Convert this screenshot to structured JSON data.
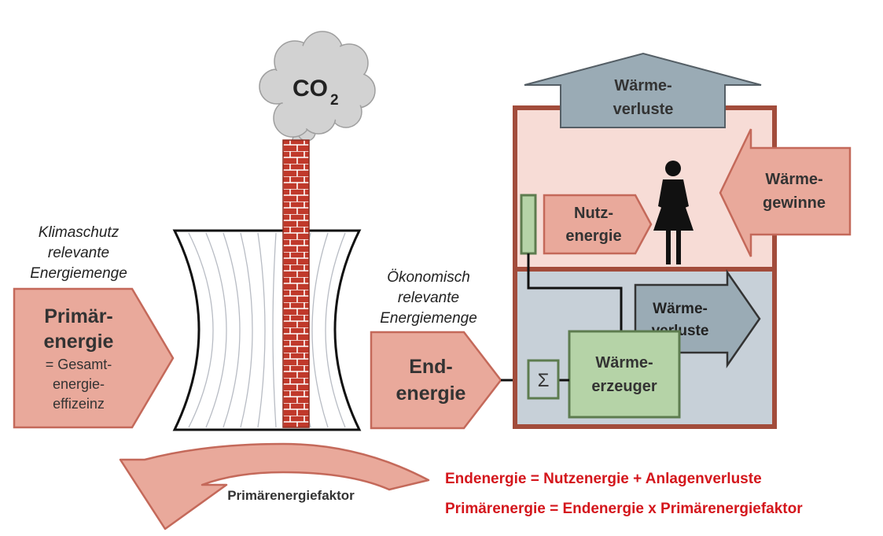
{
  "cloud": {
    "label_main": "CO",
    "label_sub": "2"
  },
  "left": {
    "caption": [
      "Klimaschutz",
      "relevante",
      "Energiemenge"
    ],
    "arrow_title": [
      "Primär-",
      "energie"
    ],
    "arrow_sub": [
      "= Gesamt-",
      "energie-",
      "effizeinz"
    ]
  },
  "curved_arrow": {
    "label": "Primärenergiefaktor"
  },
  "middle": {
    "caption": [
      "Ökonomisch",
      "relevante",
      "Energiemenge"
    ],
    "arrow_label": [
      "End-",
      "energie"
    ]
  },
  "house": {
    "roof_label": [
      "Wärme-",
      "verluste"
    ],
    "gains_label": [
      "Wärme-",
      "gewinne"
    ],
    "useful_label": [
      "Nutz-",
      "energie"
    ],
    "losses_label": [
      "Wärme-",
      "verluste"
    ],
    "generator_label": [
      "Wärme-",
      "erzeuger"
    ],
    "sigma": "Σ"
  },
  "formulas": {
    "line1": "Endenergie =  Nutzenergie +  Anlagenverluste",
    "line2": "Primärenergie =  Endenergie x  Primärenergiefaktor"
  },
  "colors": {
    "salmon": "#e9a99b",
    "salmon_edge": "#c4695a",
    "brick": "#c0392b",
    "house_border": "#a24c3b",
    "upper_room": "#f7dcd6",
    "lower_room": "#c7d0d8",
    "slate": "#9aabb5",
    "green_fill": "#b5d3a7",
    "green_edge": "#5d7c4f",
    "formula_red": "#d4161c"
  }
}
